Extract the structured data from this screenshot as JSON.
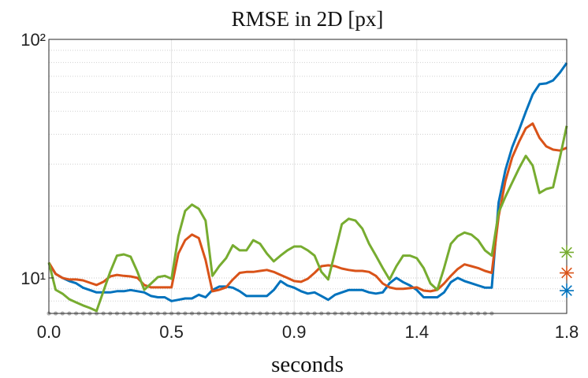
{
  "chart_data": {
    "type": "line",
    "title": "RMSE in 2D [px]",
    "x_label": "seconds",
    "yscale": "log",
    "grid": true,
    "ylim": [
      7.1,
      100
    ],
    "yticks": [
      {
        "value": 10,
        "label": "10¹"
      },
      {
        "value": 100,
        "label": "10²"
      }
    ],
    "categories": [
      "0.0",
      null,
      null,
      null,
      null,
      null,
      null,
      null,
      null,
      null,
      null,
      null,
      null,
      null,
      null,
      null,
      null,
      null,
      "0.5",
      null,
      null,
      null,
      null,
      null,
      null,
      null,
      null,
      null,
      null,
      null,
      null,
      null,
      null,
      null,
      null,
      null,
      "0.9",
      null,
      null,
      null,
      null,
      null,
      null,
      null,
      null,
      null,
      null,
      null,
      null,
      null,
      null,
      null,
      null,
      null,
      "1.4",
      null,
      null,
      null,
      null,
      null,
      null,
      null,
      null,
      null,
      null,
      null,
      null,
      null,
      null,
      null,
      null,
      null,
      null,
      null,
      null,
      null,
      "1.8"
    ],
    "series": [
      {
        "color": "#0072bd",
        "values": [
          11.5,
          10.4,
          10,
          9.7,
          9.5,
          9.1,
          8.9,
          8.7,
          8.7,
          8.7,
          8.8,
          8.8,
          8.9,
          8.8,
          8.7,
          8.4,
          8.3,
          8.3,
          8.0,
          8.1,
          8.2,
          8.2,
          8.5,
          8.3,
          8.9,
          9.2,
          9.2,
          9.1,
          8.8,
          8.4,
          8.4,
          8.4,
          8.4,
          8.9,
          9.7,
          9.3,
          9.1,
          8.8,
          8.6,
          8.7,
          8.4,
          8.1,
          8.5,
          8.7,
          8.9,
          8.9,
          8.9,
          8.7,
          8.6,
          8.7,
          9.5,
          10,
          9.6,
          9.3,
          8.9,
          8.3,
          8.3,
          8.3,
          8.7,
          9.6,
          10,
          9.7,
          9.5,
          9.3,
          9.1,
          9.1,
          20.7,
          28.3,
          35.3,
          41.7,
          49.7,
          58.8,
          64.9,
          65.4,
          67.3,
          72.6,
          79.6
        ]
      },
      {
        "color": "#d95319",
        "values": [
          11.6,
          10.4,
          10,
          9.85,
          9.85,
          9.77,
          9.55,
          9.34,
          9.63,
          10.15,
          10.3,
          10.2,
          10.15,
          10,
          9.34,
          9.13,
          9.13,
          9.13,
          9.13,
          12.65,
          14.4,
          15.2,
          14.7,
          11.9,
          8.79,
          8.92,
          9.13,
          9.85,
          10.5,
          10.6,
          10.6,
          10.7,
          10.8,
          10.6,
          10.3,
          10,
          9.7,
          9.63,
          9.92,
          10.5,
          11.2,
          11.3,
          11.2,
          10.95,
          10.8,
          10.7,
          10.7,
          10.6,
          10.2,
          9.48,
          9.13,
          9.0,
          9.0,
          9.06,
          9.13,
          8.85,
          8.79,
          8.92,
          9.48,
          10.2,
          10.9,
          11.4,
          11.2,
          11.0,
          10.7,
          10.5,
          18.1,
          25.5,
          32.0,
          37.2,
          42.4,
          44.4,
          38.7,
          35.6,
          34.5,
          34.2,
          35.1
        ]
      },
      {
        "color": "#77ac30",
        "values": [
          11.6,
          8.92,
          8.59,
          8.14,
          7.9,
          7.67,
          7.49,
          7.27,
          8.79,
          10.6,
          12.4,
          12.56,
          12.28,
          10.6,
          8.92,
          9.48,
          10.08,
          10.2,
          9.92,
          14.96,
          19.1,
          20.3,
          19.5,
          17.4,
          10.2,
          11.2,
          12.1,
          13.7,
          13.05,
          13.05,
          14.4,
          13.9,
          12.65,
          11.73,
          12.4,
          13.05,
          13.55,
          13.55,
          13.05,
          12.4,
          10.6,
          9.85,
          12.85,
          16.8,
          17.7,
          17.4,
          16.1,
          13.9,
          12.4,
          11.0,
          9.85,
          11.2,
          12.4,
          12.4,
          12.1,
          11.0,
          9.48,
          8.92,
          11.0,
          13.9,
          14.96,
          15.5,
          15.2,
          14.4,
          13.05,
          12.4,
          18.8,
          21.9,
          25.1,
          28.8,
          32.5,
          29.6,
          22.7,
          23.6,
          24.0,
          32.0,
          43.4
        ]
      }
    ],
    "markers": [
      {
        "color": "#77ac30",
        "value": 12.8
      },
      {
        "color": "#d95319",
        "value": 10.5
      },
      {
        "color": "#0072bd",
        "value": 8.85
      }
    ]
  }
}
